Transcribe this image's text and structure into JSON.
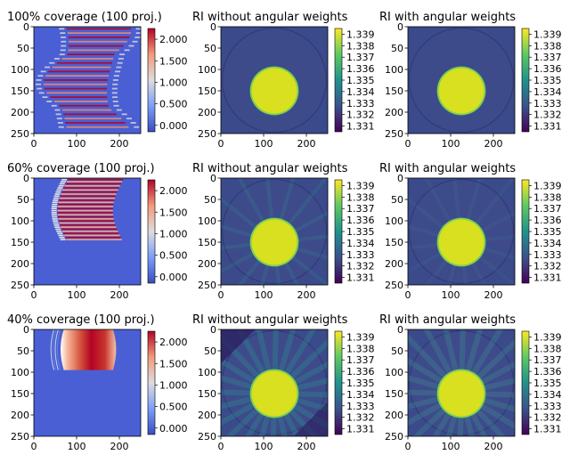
{
  "figure": {
    "rows": [
      {
        "sinogram_title": "100% coverage (100 proj.)",
        "ri_plain_title": "RI without angular weights",
        "ri_weighted_title": "RI with angular weights"
      },
      {
        "sinogram_title": "60% coverage (100 proj.)",
        "ri_plain_title": "RI without angular weights",
        "ri_weighted_title": "RI with angular weights"
      },
      {
        "sinogram_title": "40% coverage (100 proj.)",
        "ri_plain_title": "RI without angular weights",
        "ri_weighted_title": "RI with angular weights"
      }
    ]
  },
  "chart_data": [
    {
      "type": "heatmap",
      "title": "100% coverage (100 proj.)",
      "colormap": "coolwarm",
      "coverage_percent": 100,
      "projections": 100,
      "xlim": [
        0,
        250
      ],
      "ylim": [
        250,
        0
      ],
      "xticks": [
        "0",
        "100",
        "200"
      ],
      "yticks": [
        "0",
        "50",
        "100",
        "150",
        "200",
        "250"
      ],
      "colorbar_ticks": [
        "0.000",
        "0.500",
        "1.000",
        "1.500",
        "2.000"
      ],
      "colorbar_range": [
        -0.15,
        2.25
      ]
    },
    {
      "type": "heatmap",
      "title": "RI without angular weights",
      "colormap": "viridis",
      "xlim": [
        0,
        250
      ],
      "ylim": [
        250,
        0
      ],
      "xticks": [
        "0",
        "100",
        "200"
      ],
      "yticks": [
        "0",
        "50",
        "100",
        "150",
        "200",
        "250"
      ],
      "colorbar_ticks": [
        "1.331",
        "1.332",
        "1.333",
        "1.334",
        "1.335",
        "1.336",
        "1.337",
        "1.338",
        "1.339"
      ],
      "colorbar_range": [
        1.3305,
        1.3395
      ]
    },
    {
      "type": "heatmap",
      "title": "RI with angular weights",
      "colormap": "viridis",
      "xlim": [
        0,
        250
      ],
      "ylim": [
        250,
        0
      ],
      "xticks": [
        "0",
        "100",
        "200"
      ],
      "yticks": [
        "0",
        "50",
        "100",
        "150",
        "200",
        "250"
      ],
      "colorbar_ticks": [
        "1.331",
        "1.332",
        "1.333",
        "1.334",
        "1.335",
        "1.336",
        "1.337",
        "1.338",
        "1.339"
      ],
      "colorbar_range": [
        1.3305,
        1.3395
      ]
    },
    {
      "type": "heatmap",
      "title": "60% coverage (100 proj.)",
      "colormap": "coolwarm",
      "coverage_percent": 60,
      "projections": 100,
      "xlim": [
        0,
        250
      ],
      "ylim": [
        250,
        0
      ],
      "xticks": [
        "0",
        "100",
        "200"
      ],
      "yticks": [
        "0",
        "50",
        "100",
        "150",
        "200",
        "250"
      ],
      "colorbar_ticks": [
        "0.000",
        "0.500",
        "1.000",
        "1.500",
        "2.000"
      ],
      "colorbar_range": [
        -0.15,
        2.25
      ]
    },
    {
      "type": "heatmap",
      "title": "RI without angular weights",
      "colormap": "viridis",
      "xlim": [
        0,
        250
      ],
      "ylim": [
        250,
        0
      ],
      "xticks": [
        "0",
        "100",
        "200"
      ],
      "yticks": [
        "0",
        "50",
        "100",
        "150",
        "200",
        "250"
      ],
      "colorbar_ticks": [
        "1.331",
        "1.332",
        "1.333",
        "1.334",
        "1.335",
        "1.336",
        "1.337",
        "1.338",
        "1.339"
      ],
      "colorbar_range": [
        1.3305,
        1.3395
      ]
    },
    {
      "type": "heatmap",
      "title": "RI with angular weights",
      "colormap": "viridis",
      "xlim": [
        0,
        250
      ],
      "ylim": [
        250,
        0
      ],
      "xticks": [
        "0",
        "100",
        "200"
      ],
      "yticks": [
        "0",
        "50",
        "100",
        "150",
        "200",
        "250"
      ],
      "colorbar_ticks": [
        "1.331",
        "1.332",
        "1.333",
        "1.334",
        "1.335",
        "1.336",
        "1.337",
        "1.338",
        "1.339"
      ],
      "colorbar_range": [
        1.3305,
        1.3395
      ]
    },
    {
      "type": "heatmap",
      "title": "40% coverage (100 proj.)",
      "colormap": "coolwarm",
      "coverage_percent": 40,
      "projections": 100,
      "xlim": [
        0,
        250
      ],
      "ylim": [
        250,
        0
      ],
      "xticks": [
        "0",
        "100",
        "200"
      ],
      "yticks": [
        "0",
        "50",
        "100",
        "150",
        "200",
        "250"
      ],
      "colorbar_ticks": [
        "0.000",
        "0.500",
        "1.000",
        "1.500",
        "2.000"
      ],
      "colorbar_range": [
        -0.15,
        2.25
      ]
    },
    {
      "type": "heatmap",
      "title": "RI without angular weights",
      "colormap": "viridis",
      "xlim": [
        0,
        250
      ],
      "ylim": [
        250,
        0
      ],
      "xticks": [
        "0",
        "100",
        "200"
      ],
      "yticks": [
        "0",
        "50",
        "100",
        "150",
        "200",
        "250"
      ],
      "colorbar_ticks": [
        "1.331",
        "1.332",
        "1.333",
        "1.334",
        "1.335",
        "1.336",
        "1.337",
        "1.338",
        "1.339"
      ],
      "colorbar_range": [
        1.3305,
        1.3395
      ]
    },
    {
      "type": "heatmap",
      "title": "RI with angular weights",
      "colormap": "viridis",
      "xlim": [
        0,
        250
      ],
      "ylim": [
        250,
        0
      ],
      "xticks": [
        "0",
        "100",
        "200"
      ],
      "yticks": [
        "0",
        "50",
        "100",
        "150",
        "200",
        "250"
      ],
      "colorbar_ticks": [
        "1.331",
        "1.332",
        "1.333",
        "1.334",
        "1.335",
        "1.336",
        "1.337",
        "1.338",
        "1.339"
      ],
      "colorbar_range": [
        1.3305,
        1.3395
      ]
    }
  ]
}
